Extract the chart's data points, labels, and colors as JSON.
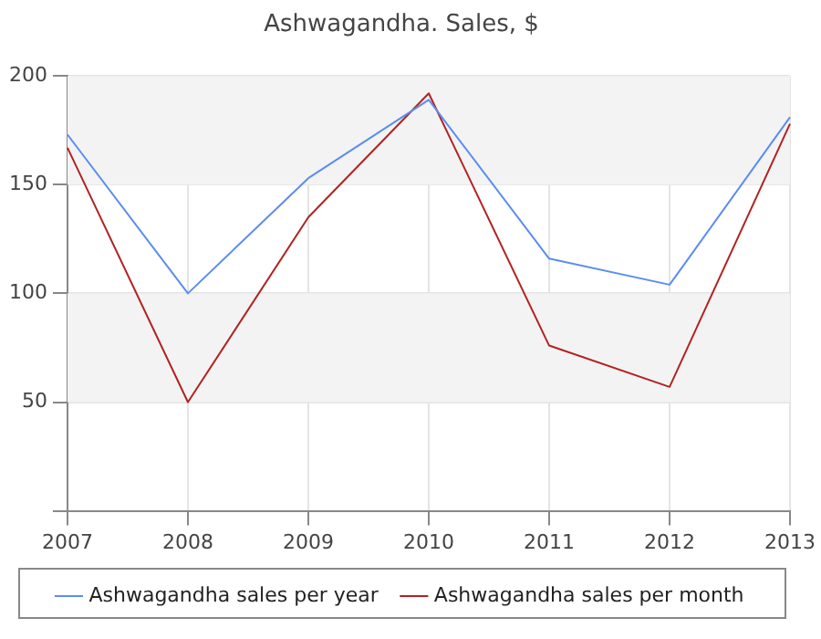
{
  "chart_data": {
    "type": "line",
    "title": "Ashwagandha. Sales, $",
    "categories": [
      "2007",
      "2008",
      "2009",
      "2010",
      "2011",
      "2012",
      "2013"
    ],
    "series": [
      {
        "name": "Ashwagandha sales per year",
        "color": "#5b8def",
        "values": [
          173,
          100,
          153,
          189,
          116,
          104,
          181
        ]
      },
      {
        "name": "Ashwagandha sales per month",
        "color": "#b22222",
        "values": [
          167,
          50,
          135,
          192,
          76,
          57,
          178
        ]
      }
    ],
    "ylim": [
      0,
      200
    ],
    "yticks": [
      {
        "value": 0,
        "label": null
      },
      50,
      100,
      150,
      200
    ],
    "grid": true,
    "legend": "bottom",
    "marker": "none",
    "line_style": "solid"
  }
}
